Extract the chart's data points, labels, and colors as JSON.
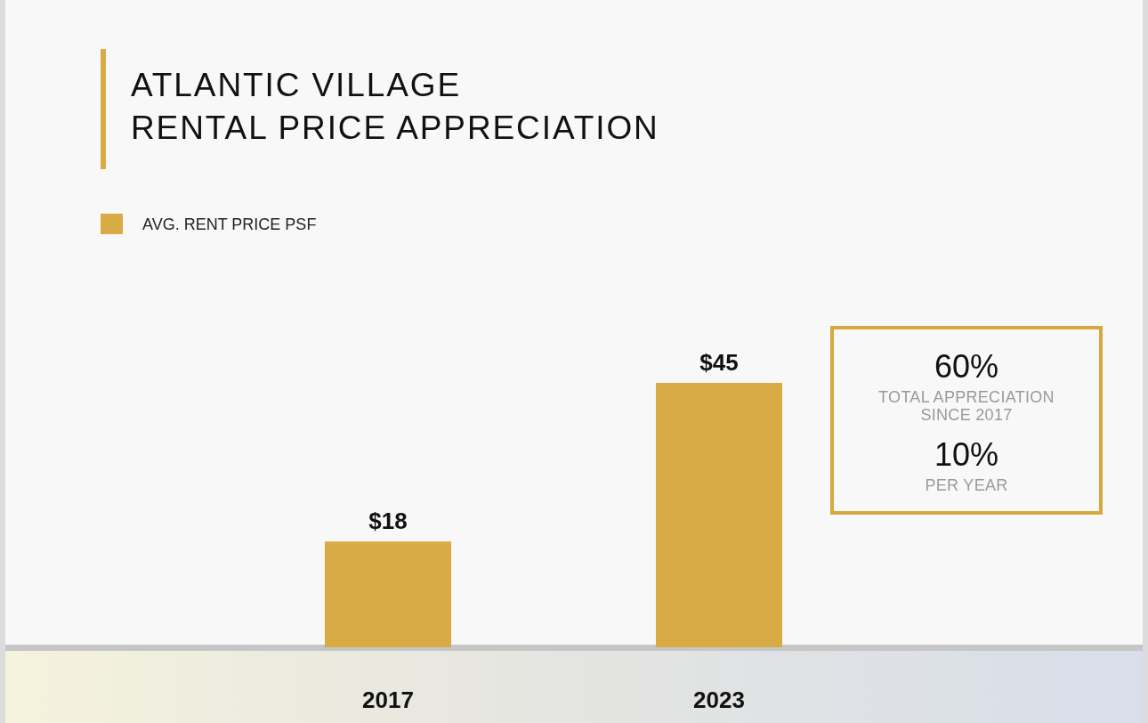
{
  "chart_data": [
    {
      "type": "bar",
      "title": "ATLANTIC VILLAGE\nRENTAL PRICE APPRECIATION",
      "categories": [
        "2017",
        "2023"
      ],
      "series": [
        {
          "name": "AVG. RENT PRICE PSF",
          "color": "#d9ab45",
          "values": [
            18,
            45
          ],
          "value_labels": [
            "$18",
            "$45"
          ]
        }
      ],
      "legend": "top left"
    },
    {
      "type": "other",
      "annotations": [
        "60%",
        "TOTAL APPRECIATION\nSINCE 2017",
        "10%",
        "PER YEAR"
      ]
    }
  ]
}
